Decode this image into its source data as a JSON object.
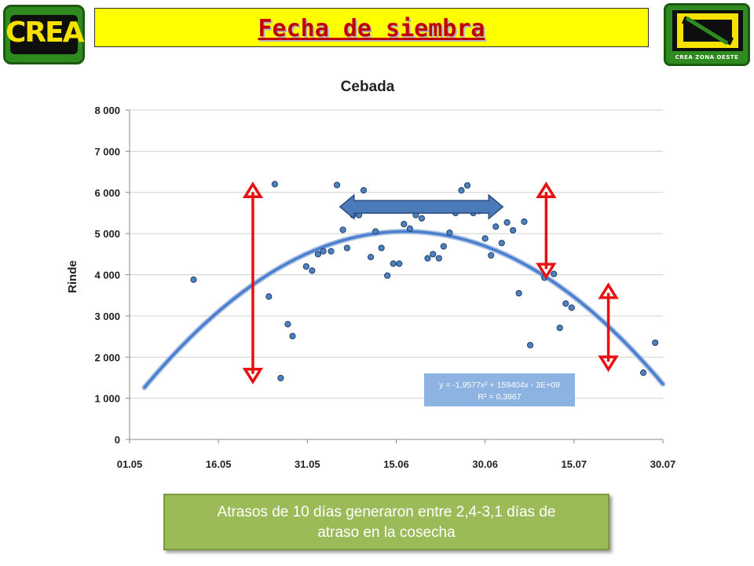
{
  "header": {
    "title": "Fecha de siembra",
    "logo_left_text": "CREA",
    "logo_right_text": "CREA ZONA OESTE"
  },
  "chart_data": {
    "type": "scatter",
    "title": "Cebada",
    "xlabel": "",
    "ylabel": "Rinde",
    "x_tick_labels": [
      "01.05",
      "16.05",
      "31.05",
      "15.06",
      "30.06",
      "15.07",
      "30.07"
    ],
    "x_domain_days": [
      0,
      90
    ],
    "y_ticks": [
      0,
      1000,
      2000,
      3000,
      4000,
      5000,
      6000,
      7000,
      8000
    ],
    "y_tick_labels": [
      "0",
      "1 000",
      "2 000",
      "3 000",
      "4 000",
      "5 000",
      "6 000",
      "7 000",
      "8 000"
    ],
    "ylim": [
      0,
      8000
    ],
    "grid": "horizontal",
    "legend": "none",
    "points": [
      [
        10.8,
        3880
      ],
      [
        23.5,
        3470
      ],
      [
        24.5,
        6200
      ],
      [
        25.5,
        1490
      ],
      [
        26.7,
        2800
      ],
      [
        27.5,
        2510
      ],
      [
        29.8,
        4200
      ],
      [
        30.8,
        4100
      ],
      [
        31.8,
        4500
      ],
      [
        32.7,
        4570
      ],
      [
        34,
        4570
      ],
      [
        35,
        6180
      ],
      [
        36,
        5090
      ],
      [
        36.7,
        4650
      ],
      [
        37.7,
        5450
      ],
      [
        38.7,
        5450
      ],
      [
        39.5,
        6050
      ],
      [
        40.7,
        4430
      ],
      [
        41.5,
        5050
      ],
      [
        42.5,
        4650
      ],
      [
        43.5,
        3980
      ],
      [
        44.5,
        4270
      ],
      [
        45.5,
        4270
      ],
      [
        46.3,
        5230
      ],
      [
        47.3,
        5120
      ],
      [
        48.3,
        5450
      ],
      [
        49.3,
        5370
      ],
      [
        50.3,
        4400
      ],
      [
        51.2,
        4500
      ],
      [
        52.2,
        4400
      ],
      [
        53,
        4690
      ],
      [
        54,
        5020
      ],
      [
        55,
        5500
      ],
      [
        56,
        6050
      ],
      [
        57,
        6170
      ],
      [
        58,
        5500
      ],
      [
        59,
        5550
      ],
      [
        60,
        4880
      ],
      [
        61,
        4470
      ],
      [
        61.8,
        5170
      ],
      [
        62.8,
        4770
      ],
      [
        63.7,
        5270
      ],
      [
        64.7,
        5080
      ],
      [
        65.7,
        3550
      ],
      [
        66.6,
        5290
      ],
      [
        67.6,
        2290
      ],
      [
        70,
        3930
      ],
      [
        71.6,
        4020
      ],
      [
        72.6,
        2710
      ],
      [
        73.6,
        3300
      ],
      [
        74.6,
        3200
      ],
      [
        86.7,
        1620
      ],
      [
        88.7,
        2350
      ]
    ],
    "trendline": {
      "type": "polynomial-2",
      "equation": "y = -1,9577x² + 159404x - 3E+09",
      "r_squared": "R² = 0,3967",
      "vertex_x": 46.5,
      "vertex_y": 5050,
      "curvature": 1.9577,
      "x_range": [
        2.5,
        90
      ],
      "color": "#4a7fd0"
    },
    "annotations": {
      "double_arrow_red_color": "#e81010",
      "double_arrow_blue_color": "#4a7ab8",
      "red_double_arrows": [
        {
          "x": 20.8,
          "y_from": 1400,
          "y_to": 6200
        },
        {
          "x": 70.3,
          "y_from": 3950,
          "y_to": 6200
        },
        {
          "x": 80.8,
          "y_from": 1700,
          "y_to": 3750
        }
      ],
      "blue_double_arrow": {
        "y": 5650,
        "x_from": 35.5,
        "x_to": 63
      }
    }
  },
  "callout": {
    "line1": "Atrasos de 10 días generaron entre 2,4-3,1 días de",
    "line2": "atraso en la cosecha"
  }
}
